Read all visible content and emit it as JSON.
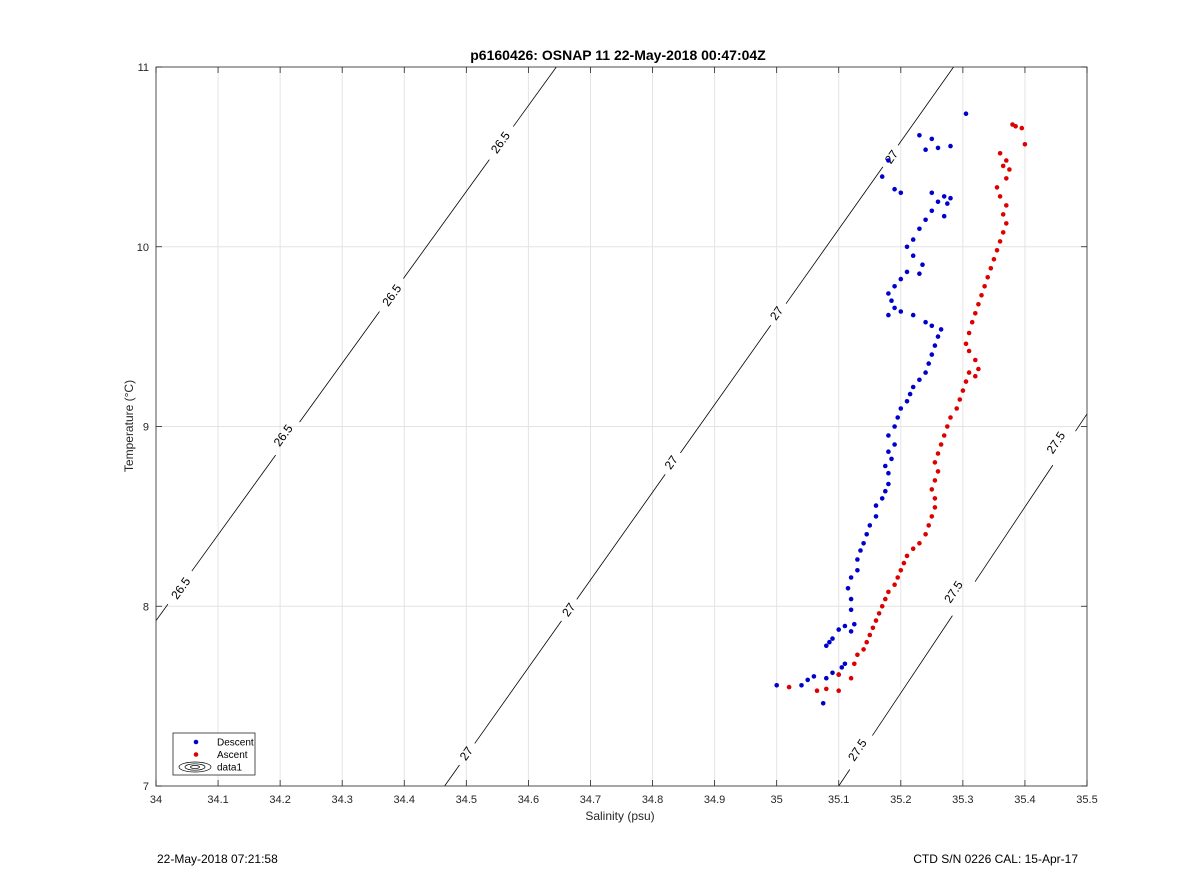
{
  "footer": {
    "timestamp": "22-May-2018 07:21:58",
    "ctd_info": "CTD S/N 0226  CAL: 15-Apr-17"
  },
  "chart_data": {
    "type": "scatter",
    "title": "p6160426: OSNAP 11 22-May-2018 00:47:04Z",
    "xlabel": "Salinity (psu)",
    "ylabel": "Temperature (°C)",
    "xlim": [
      34,
      35.5
    ],
    "ylim": [
      7,
      11
    ],
    "xticks": [
      34,
      34.1,
      34.2,
      34.3,
      34.4,
      34.5,
      34.6,
      34.7,
      34.8,
      34.9,
      35,
      35.1,
      35.2,
      35.3,
      35.4,
      35.5
    ],
    "xtick_labels": [
      "34",
      "34.1",
      "34.2",
      "34.3",
      "34.4",
      "34.5",
      "34.6",
      "34.7",
      "34.8",
      "34.9",
      "35",
      "35.1",
      "35.2",
      "35.3",
      "35.4",
      "35.5"
    ],
    "yticks": [
      7,
      8,
      9,
      10,
      11
    ],
    "ytick_labels": [
      "7",
      "8",
      "9",
      "10",
      "11"
    ],
    "grid": true,
    "legend_position": "bottom-left",
    "legend": [
      {
        "label": "Descent",
        "marker": "dot",
        "color": "#0000cc"
      },
      {
        "label": "Ascent",
        "marker": "dot",
        "color": "#dd0000"
      },
      {
        "label": "data1",
        "marker": "contour",
        "color": "#000000"
      }
    ],
    "contours": [
      {
        "level": "26.5",
        "x": [
          34.0,
          34.645
        ],
        "y": [
          7.92,
          11.0
        ],
        "labels": [
          {
            "text": "26.5",
            "x": 34.04,
            "y": 8.1
          },
          {
            "text": "26.5",
            "x": 34.205,
            "y": 8.95
          },
          {
            "text": "26.5",
            "x": 34.38,
            "y": 9.73
          },
          {
            "text": "26.5",
            "x": 34.555,
            "y": 10.58
          }
        ]
      },
      {
        "level": "27",
        "x": [
          34.465,
          35.285
        ],
        "y": [
          7.0,
          11.0
        ],
        "labels": [
          {
            "text": "27",
            "x": 34.5,
            "y": 7.18
          },
          {
            "text": "27",
            "x": 34.665,
            "y": 7.98
          },
          {
            "text": "27",
            "x": 34.83,
            "y": 8.8
          },
          {
            "text": "27",
            "x": 35.0,
            "y": 9.63
          },
          {
            "text": "27",
            "x": 35.185,
            "y": 10.5
          }
        ]
      },
      {
        "level": "27.5",
        "x": [
          35.1,
          35.5
        ],
        "y": [
          7.0,
          9.07
        ],
        "labels": [
          {
            "text": "27.5",
            "x": 35.13,
            "y": 7.2
          },
          {
            "text": "27.5",
            "x": 35.285,
            "y": 8.08
          },
          {
            "text": "27.5",
            "x": 35.45,
            "y": 8.91
          }
        ]
      }
    ],
    "series": [
      {
        "name": "Descent",
        "color": "#0000cc",
        "points": [
          [
            35.0,
            7.56
          ],
          [
            35.04,
            7.56
          ],
          [
            35.05,
            7.59
          ],
          [
            35.06,
            7.61
          ],
          [
            35.075,
            7.46
          ],
          [
            35.08,
            7.6
          ],
          [
            35.09,
            7.63
          ],
          [
            35.1,
            7.62
          ],
          [
            35.105,
            7.66
          ],
          [
            35.11,
            7.68
          ],
          [
            35.08,
            7.78
          ],
          [
            35.085,
            7.8
          ],
          [
            35.09,
            7.82
          ],
          [
            35.1,
            7.87
          ],
          [
            35.11,
            7.89
          ],
          [
            35.12,
            7.86
          ],
          [
            35.125,
            7.9
          ],
          [
            35.12,
            7.98
          ],
          [
            35.12,
            8.04
          ],
          [
            35.115,
            8.1
          ],
          [
            35.12,
            8.16
          ],
          [
            35.13,
            8.2
          ],
          [
            35.13,
            8.26
          ],
          [
            35.135,
            8.31
          ],
          [
            35.14,
            8.35
          ],
          [
            35.145,
            8.4
          ],
          [
            35.15,
            8.45
          ],
          [
            35.16,
            8.5
          ],
          [
            35.16,
            8.56
          ],
          [
            35.17,
            8.6
          ],
          [
            35.175,
            8.64
          ],
          [
            35.18,
            8.68
          ],
          [
            35.18,
            8.74
          ],
          [
            35.175,
            8.78
          ],
          [
            35.185,
            8.82
          ],
          [
            35.18,
            8.86
          ],
          [
            35.19,
            8.9
          ],
          [
            35.18,
            8.95
          ],
          [
            35.19,
            9.0
          ],
          [
            35.195,
            9.05
          ],
          [
            35.2,
            9.1
          ],
          [
            35.21,
            9.14
          ],
          [
            35.215,
            9.18
          ],
          [
            35.22,
            9.22
          ],
          [
            35.23,
            9.26
          ],
          [
            35.24,
            9.3
          ],
          [
            35.245,
            9.35
          ],
          [
            35.25,
            9.4
          ],
          [
            35.255,
            9.45
          ],
          [
            35.26,
            9.5
          ],
          [
            35.265,
            9.54
          ],
          [
            35.25,
            9.56
          ],
          [
            35.24,
            9.58
          ],
          [
            35.22,
            9.62
          ],
          [
            35.2,
            9.64
          ],
          [
            35.19,
            9.66
          ],
          [
            35.18,
            9.62
          ],
          [
            35.185,
            9.7
          ],
          [
            35.18,
            9.74
          ],
          [
            35.19,
            9.78
          ],
          [
            35.2,
            9.82
          ],
          [
            35.21,
            9.86
          ],
          [
            35.23,
            9.85
          ],
          [
            35.235,
            9.9
          ],
          [
            35.22,
            9.95
          ],
          [
            35.21,
            10.0
          ],
          [
            35.22,
            10.04
          ],
          [
            35.23,
            10.1
          ],
          [
            35.24,
            10.15
          ],
          [
            35.25,
            10.2
          ],
          [
            35.26,
            10.25
          ],
          [
            35.27,
            10.28
          ],
          [
            35.275,
            10.24
          ],
          [
            35.28,
            10.27
          ],
          [
            35.27,
            10.17
          ],
          [
            35.25,
            10.3
          ],
          [
            35.2,
            10.3
          ],
          [
            35.19,
            10.32
          ],
          [
            35.17,
            10.39
          ],
          [
            35.18,
            10.48
          ],
          [
            35.24,
            10.54
          ],
          [
            35.26,
            10.55
          ],
          [
            35.28,
            10.56
          ],
          [
            35.23,
            10.62
          ],
          [
            35.25,
            10.6
          ],
          [
            35.305,
            10.74
          ]
        ]
      },
      {
        "name": "Ascent",
        "color": "#dd0000",
        "points": [
          [
            35.02,
            7.55
          ],
          [
            35.065,
            7.53
          ],
          [
            35.08,
            7.54
          ],
          [
            35.1,
            7.53
          ],
          [
            35.1,
            7.62
          ],
          [
            35.12,
            7.6
          ],
          [
            35.125,
            7.68
          ],
          [
            35.13,
            7.73
          ],
          [
            35.14,
            7.76
          ],
          [
            35.145,
            7.8
          ],
          [
            35.15,
            7.84
          ],
          [
            35.155,
            7.88
          ],
          [
            35.16,
            7.92
          ],
          [
            35.165,
            7.96
          ],
          [
            35.17,
            8.0
          ],
          [
            35.175,
            8.04
          ],
          [
            35.18,
            8.08
          ],
          [
            35.19,
            8.12
          ],
          [
            35.195,
            8.16
          ],
          [
            35.2,
            8.2
          ],
          [
            35.205,
            8.24
          ],
          [
            35.21,
            8.28
          ],
          [
            35.22,
            8.32
          ],
          [
            35.23,
            8.35
          ],
          [
            35.24,
            8.4
          ],
          [
            35.245,
            8.45
          ],
          [
            35.25,
            8.5
          ],
          [
            35.255,
            8.55
          ],
          [
            35.255,
            8.6
          ],
          [
            35.25,
            8.65
          ],
          [
            35.255,
            8.7
          ],
          [
            35.26,
            8.75
          ],
          [
            35.255,
            8.8
          ],
          [
            35.26,
            8.85
          ],
          [
            35.265,
            8.9
          ],
          [
            35.27,
            8.95
          ],
          [
            35.275,
            9.0
          ],
          [
            35.28,
            9.05
          ],
          [
            35.29,
            9.1
          ],
          [
            35.295,
            9.15
          ],
          [
            35.3,
            9.2
          ],
          [
            35.305,
            9.25
          ],
          [
            35.31,
            9.3
          ],
          [
            35.32,
            9.28
          ],
          [
            35.325,
            9.32
          ],
          [
            35.32,
            9.37
          ],
          [
            35.31,
            9.42
          ],
          [
            35.305,
            9.46
          ],
          [
            35.31,
            9.52
          ],
          [
            35.315,
            9.58
          ],
          [
            35.32,
            9.63
          ],
          [
            35.325,
            9.68
          ],
          [
            35.33,
            9.73
          ],
          [
            35.335,
            9.78
          ],
          [
            35.34,
            9.83
          ],
          [
            35.345,
            9.88
          ],
          [
            35.35,
            9.93
          ],
          [
            35.355,
            9.98
          ],
          [
            35.36,
            10.03
          ],
          [
            35.365,
            10.08
          ],
          [
            35.37,
            10.13
          ],
          [
            35.365,
            10.18
          ],
          [
            35.37,
            10.23
          ],
          [
            35.36,
            10.28
          ],
          [
            35.355,
            10.33
          ],
          [
            35.37,
            10.38
          ],
          [
            35.375,
            10.43
          ],
          [
            35.37,
            10.48
          ],
          [
            35.36,
            10.52
          ],
          [
            35.365,
            10.45
          ],
          [
            35.38,
            10.68
          ],
          [
            35.385,
            10.67
          ],
          [
            35.395,
            10.66
          ],
          [
            35.4,
            10.57
          ]
        ]
      }
    ]
  }
}
